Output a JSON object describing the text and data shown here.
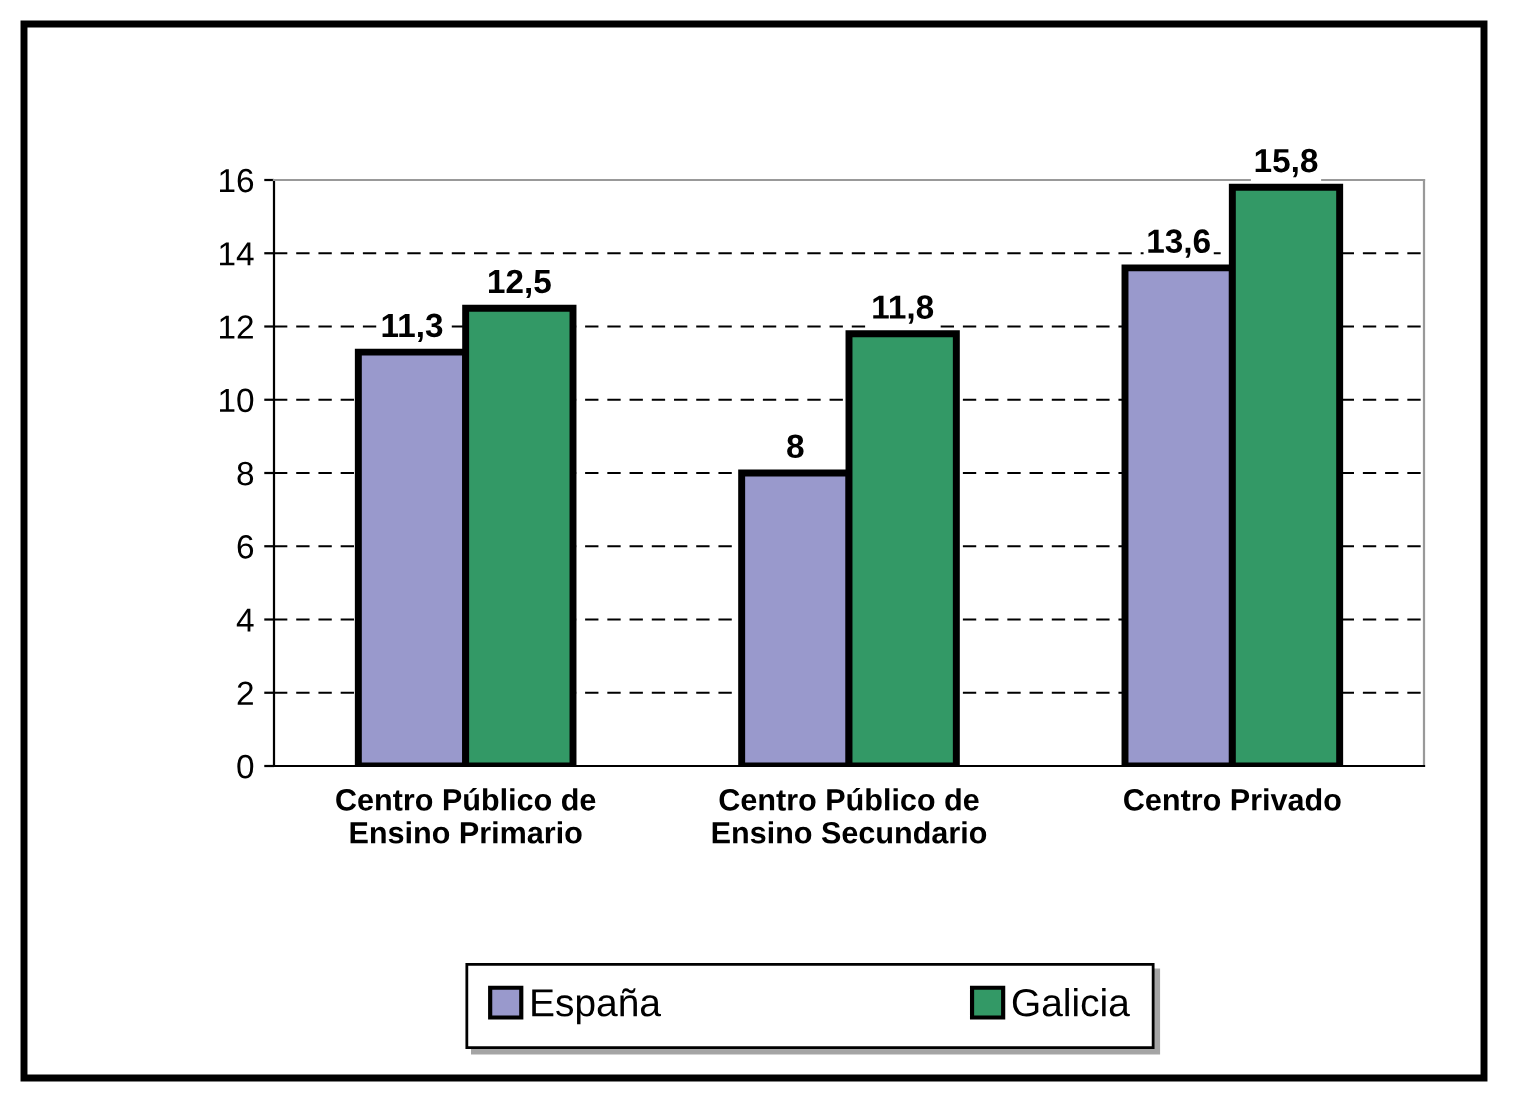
{
  "chart_data": {
    "type": "bar",
    "categories": [
      "Centro Público de\nEnsino Primario",
      "Centro Público de\nEnsino Secundario",
      "Centro Privado"
    ],
    "series": [
      {
        "name": "España",
        "color": "#9999cc",
        "values": [
          11.3,
          8,
          13.6
        ],
        "value_labels": [
          "11,3",
          "8",
          "13,6"
        ]
      },
      {
        "name": "Galicia",
        "color": "#339966",
        "values": [
          12.5,
          11.8,
          15.8
        ],
        "value_labels": [
          "12,5",
          "11,8",
          "15,8"
        ]
      }
    ],
    "ylim": [
      0,
      16
    ],
    "yticks": [
      0,
      2,
      4,
      6,
      8,
      10,
      12,
      14,
      16
    ],
    "grid": "y",
    "legend": "bottom"
  }
}
